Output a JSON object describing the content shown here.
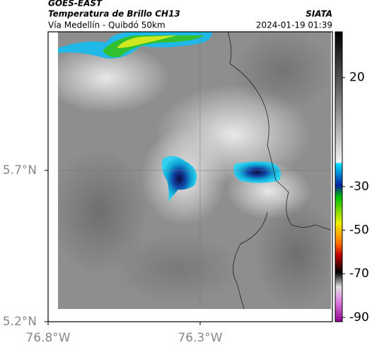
{
  "header": {
    "satellite": "GOES-EAST",
    "product": "Temperatura de Brillo CH13",
    "source": "SIATA",
    "route": "Vía Medellín - Quibdó 50km",
    "datetime": "2024-01-19 01:39"
  },
  "map": {
    "lat_lim": [
      5.2,
      6.158
    ],
    "lon_lim": [
      -76.8,
      -75.865
    ],
    "lat_ticks": [
      {
        "value": 5.7,
        "label": "5.7°N"
      },
      {
        "value": 5.2,
        "label": "5.2°N"
      }
    ],
    "lon_ticks": [
      {
        "value": -76.8,
        "label": "76.8°W"
      },
      {
        "value": -76.3,
        "label": "76.3°W"
      }
    ],
    "colorbar": {
      "lim": [
        41,
        -92
      ],
      "ticks": [
        20,
        -30,
        -50,
        -70,
        -90
      ]
    }
  }
}
